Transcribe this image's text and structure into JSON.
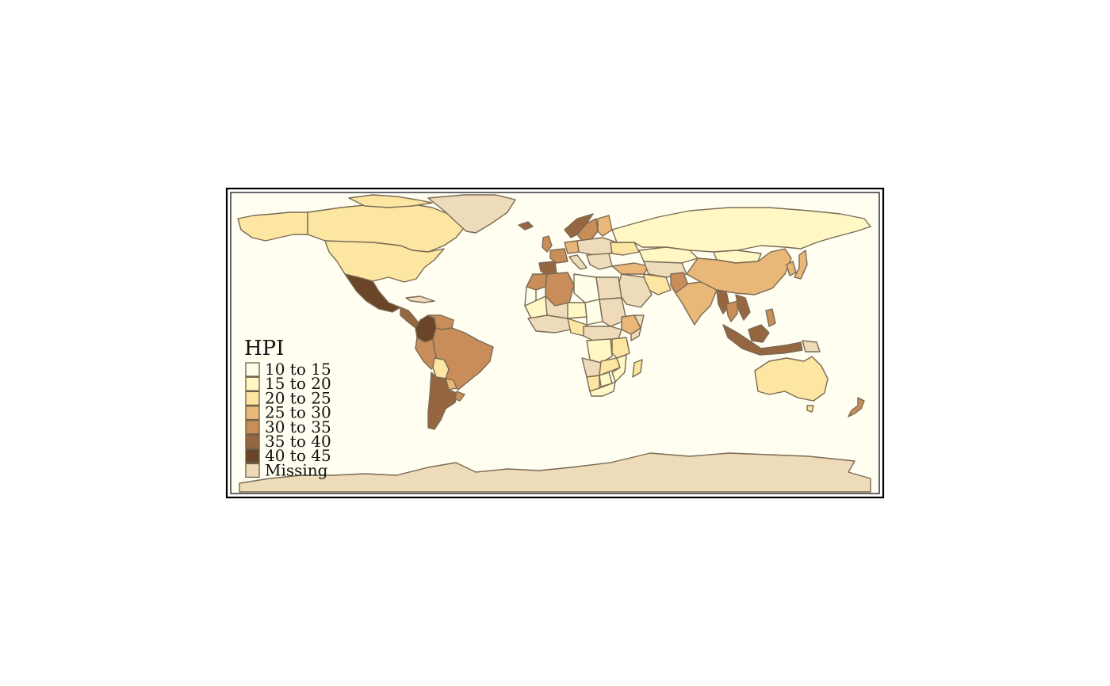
{
  "map": {
    "type": "choropleth",
    "variable": "HPI",
    "background_color": "#fffef0",
    "missing_color": "#eddbb9",
    "border_color": "#7a6a55"
  },
  "legend": {
    "title": "HPI",
    "placement": "bottom-left",
    "items": [
      {
        "label": "10 to 15",
        "color": "#fffee9"
      },
      {
        "label": "15 to 20",
        "color": "#fff8c4"
      },
      {
        "label": "20 to 25",
        "color": "#fce6a1"
      },
      {
        "label": "25 to 30",
        "color": "#e9b878"
      },
      {
        "label": "30 to 35",
        "color": "#c88d58"
      },
      {
        "label": "35 to 40",
        "color": "#966640"
      },
      {
        "label": "40 to 45",
        "color": "#6a4528"
      },
      {
        "label": "Missing",
        "color": "#eddbb9"
      }
    ]
  },
  "chart_data": {
    "type": "heatmap",
    "title": "",
    "legend_title": "HPI",
    "bins": [
      "10 to 15",
      "15 to 20",
      "20 to 25",
      "25 to 30",
      "30 to 35",
      "35 to 40",
      "40 to 45",
      "Missing"
    ],
    "regions": [
      {
        "region": "Canada",
        "bin": "20 to 25"
      },
      {
        "region": "United States",
        "bin": "20 to 25"
      },
      {
        "region": "Alaska (US)",
        "bin": "20 to 25"
      },
      {
        "region": "Greenland",
        "bin": "Missing"
      },
      {
        "region": "Mexico",
        "bin": "40 to 45"
      },
      {
        "region": "Central America",
        "bin": "35 to 40"
      },
      {
        "region": "Colombia",
        "bin": "40 to 45"
      },
      {
        "region": "Venezuela",
        "bin": "30 to 35"
      },
      {
        "region": "Brazil",
        "bin": "30 to 35"
      },
      {
        "region": "Peru",
        "bin": "30 to 35"
      },
      {
        "region": "Bolivia",
        "bin": "20 to 25"
      },
      {
        "region": "Paraguay",
        "bin": "25 to 30"
      },
      {
        "region": "Argentina",
        "bin": "35 to 40"
      },
      {
        "region": "Chile",
        "bin": "35 to 40"
      },
      {
        "region": "Uruguay",
        "bin": "30 to 35"
      },
      {
        "region": "Russia",
        "bin": "15 to 20"
      },
      {
        "region": "Kazakhstan",
        "bin": "15 to 20"
      },
      {
        "region": "Mongolia",
        "bin": "15 to 20"
      },
      {
        "region": "China",
        "bin": "25 to 30"
      },
      {
        "region": "India",
        "bin": "25 to 30"
      },
      {
        "region": "Pakistan",
        "bin": "30 to 35"
      },
      {
        "region": "Iran",
        "bin": "20 to 25"
      },
      {
        "region": "Saudi Arabia",
        "bin": "Missing"
      },
      {
        "region": "Egypt",
        "bin": "Missing"
      },
      {
        "region": "Libya",
        "bin": "10 to 15"
      },
      {
        "region": "Algeria",
        "bin": "30 to 35"
      },
      {
        "region": "Morocco",
        "bin": "30 to 35"
      },
      {
        "region": "Western Sahara",
        "bin": "10 to 15"
      },
      {
        "region": "Mauritania",
        "bin": "15 to 20"
      },
      {
        "region": "Mali",
        "bin": "Missing"
      },
      {
        "region": "Niger",
        "bin": "15 to 20"
      },
      {
        "region": "Chad",
        "bin": "10 to 15"
      },
      {
        "region": "Sudan",
        "bin": "Missing"
      },
      {
        "region": "Ethiopia",
        "bin": "25 to 30"
      },
      {
        "region": "Somalia",
        "bin": "Missing"
      },
      {
        "region": "Nigeria",
        "bin": "20 to 25"
      },
      {
        "region": "Congo DR",
        "bin": "15 to 20"
      },
      {
        "region": "Angola",
        "bin": "Missing"
      },
      {
        "region": "Tanzania",
        "bin": "20 to 25"
      },
      {
        "region": "Zambia",
        "bin": "20 to 25"
      },
      {
        "region": "Mozambique",
        "bin": "15 to 20"
      },
      {
        "region": "Namibia",
        "bin": "20 to 25"
      },
      {
        "region": "Botswana",
        "bin": "15 to 20"
      },
      {
        "region": "South Africa",
        "bin": "15 to 20"
      },
      {
        "region": "Madagascar",
        "bin": "20 to 25"
      },
      {
        "region": "Spain",
        "bin": "35 to 40"
      },
      {
        "region": "France",
        "bin": "30 to 35"
      },
      {
        "region": "Germany",
        "bin": "25 to 30"
      },
      {
        "region": "Norway",
        "bin": "35 to 40"
      },
      {
        "region": "Sweden",
        "bin": "30 to 35"
      },
      {
        "region": "Finland",
        "bin": "25 to 30"
      },
      {
        "region": "United Kingdom",
        "bin": "30 to 35"
      },
      {
        "region": "Iceland",
        "bin": "35 to 40"
      },
      {
        "region": "Ukraine",
        "bin": "20 to 25"
      },
      {
        "region": "Turkey",
        "bin": "25 to 30"
      },
      {
        "region": "Thailand",
        "bin": "30 to 35"
      },
      {
        "region": "Myanmar",
        "bin": "35 to 40"
      },
      {
        "region": "Vietnam",
        "bin": "35 to 40"
      },
      {
        "region": "Indonesia",
        "bin": "35 to 40"
      },
      {
        "region": "Philippines",
        "bin": "30 to 35"
      },
      {
        "region": "Japan",
        "bin": "25 to 30"
      },
      {
        "region": "Korea",
        "bin": "25 to 30"
      },
      {
        "region": "Papua New Guinea",
        "bin": "Missing"
      },
      {
        "region": "Australia",
        "bin": "20 to 25"
      },
      {
        "region": "New Zealand",
        "bin": "30 to 35"
      },
      {
        "region": "Antarctica",
        "bin": "Missing"
      }
    ]
  }
}
